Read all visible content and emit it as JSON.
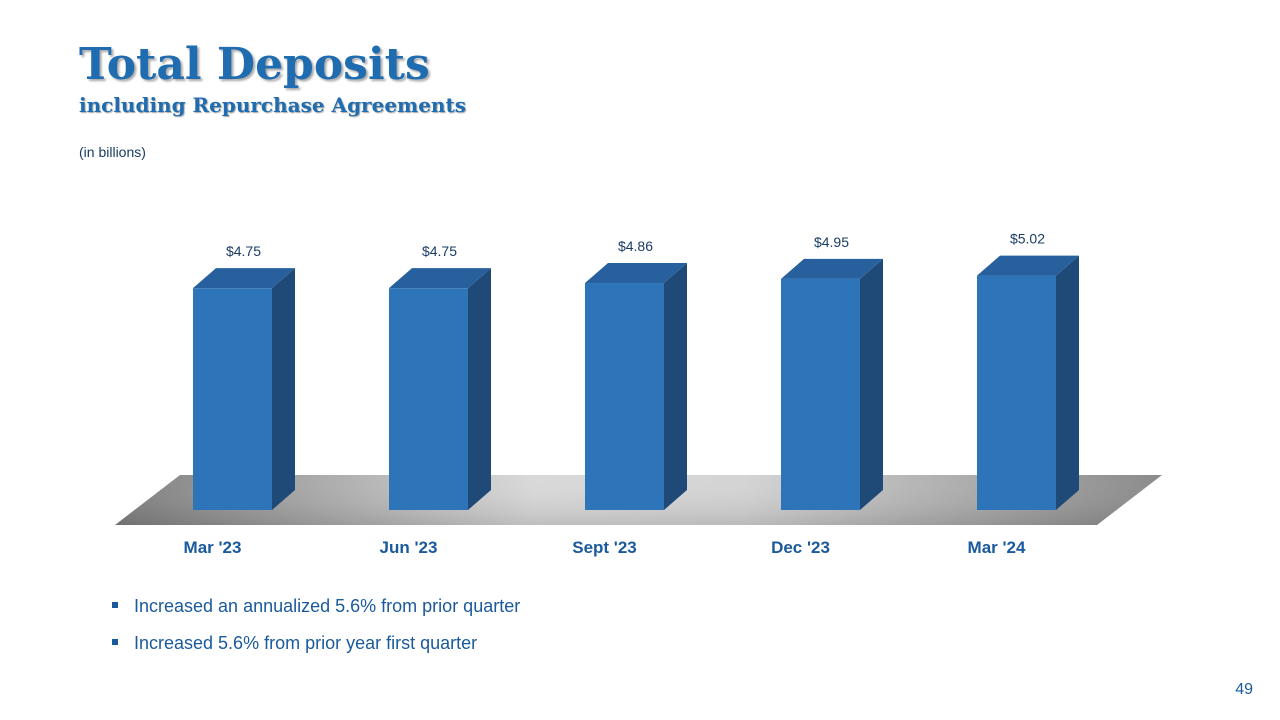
{
  "slide": {
    "title": "Total Deposits",
    "subtitle": "including Repurchase Agreements",
    "units_note": "(in billions)",
    "bullets": [
      "Increased an annualized 5.6% from prior quarter",
      "Increased 5.6% from prior year first quarter"
    ],
    "page_number": "49"
  },
  "chart_data": {
    "type": "bar",
    "categories": [
      "Mar '23",
      "Jun '23",
      "Sept '23",
      "Dec '23",
      "Mar '24"
    ],
    "values": [
      4.75,
      4.75,
      4.86,
      4.95,
      5.02
    ],
    "data_labels": [
      "$4.75",
      "$4.75",
      "$4.86",
      "$4.95",
      "$5.02"
    ],
    "title": "",
    "xlabel": "",
    "ylabel": "",
    "ylim": [
      0,
      6.0
    ],
    "grid": false,
    "legend": "none",
    "colors": {
      "bar_front": "#2e74b8",
      "bar_side": "#1f4a78",
      "bar_top": "#27609c",
      "floor_light": "#d9d9d9",
      "floor_dark": "#7f7f7f",
      "label": "#1a3c66",
      "category_label": "#1a5a9c"
    }
  }
}
